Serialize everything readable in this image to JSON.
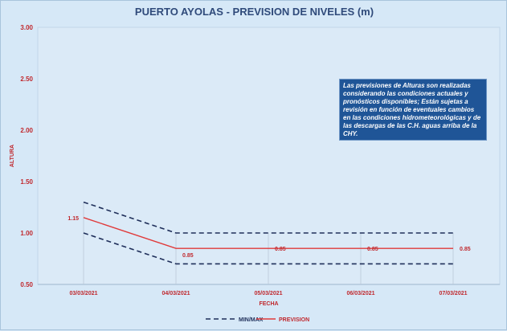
{
  "chart_data": {
    "type": "line",
    "title": "PUERTO AYOLAS - PREVISION DE NIVELES (m)",
    "xlabel": "FECHA",
    "ylabel": "ALTURA",
    "ylim": [
      0.5,
      3.0
    ],
    "yticks": [
      "0.50",
      "1.00",
      "1.50",
      "2.00",
      "2.50",
      "3.00"
    ],
    "categories": [
      "03/03/2021",
      "04/03/2021",
      "05/03/2021",
      "06/03/2021",
      "07/03/2021"
    ],
    "series": [
      {
        "name": "PREVISION",
        "values": [
          1.15,
          0.85,
          0.85,
          0.85,
          0.85
        ],
        "color": "#e03a3a"
      },
      {
        "name": "MIN/MAX",
        "role": "upper",
        "values": [
          1.3,
          1.0,
          1.0,
          1.0,
          1.0
        ],
        "color": "#1f2f5a"
      },
      {
        "name": "MIN/MAX",
        "role": "lower",
        "values": [
          1.0,
          0.7,
          0.7,
          0.7,
          0.7
        ],
        "color": "#1f2f5a"
      }
    ],
    "data_labels": [
      "1.15",
      "0.85",
      "0.85",
      "0.85",
      "0.85"
    ],
    "legend": {
      "position": "bottom",
      "items": [
        "MIN/MAX",
        "PREVISION"
      ]
    },
    "grid": false
  },
  "note": {
    "text": "Las previsiones de Alturas son realizadas considerando las condiciones actuales y pronósticos disponibles; Están sujetas a revisión en función de eventuales cambios en las condiciones hidrometeorológicas y de las descargas de las C.H. aguas arriba de la CHY."
  }
}
